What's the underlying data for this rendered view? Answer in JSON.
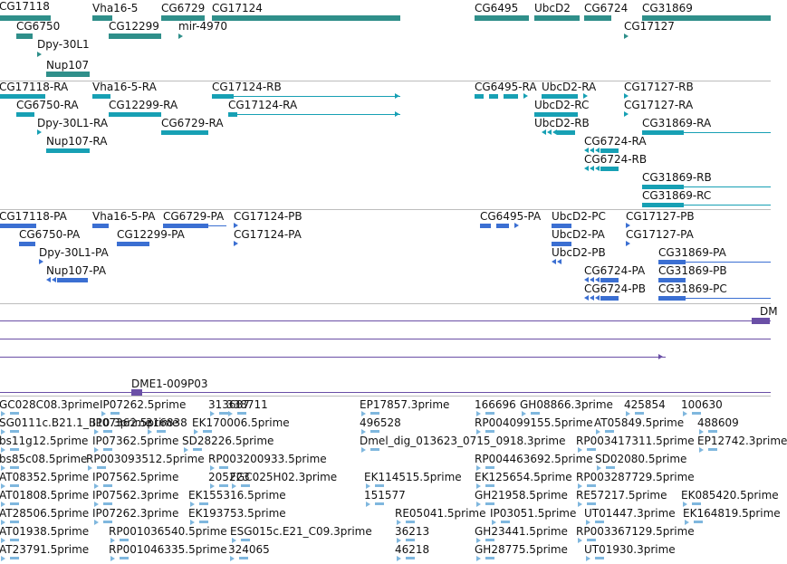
{
  "colors": {
    "gene": "#2f8f8a",
    "transcript": "#17a0b4",
    "protein": "#3b6fd2",
    "contig": "#6a4fa6",
    "est": "#7fb7de",
    "separator": "#bdbdbd"
  },
  "tracks": {
    "genes": {
      "labels": [
        "CG17118",
        "Vha16-5",
        "CG6729",
        "CG17124",
        "CG6495",
        "UbcD2",
        "CG6724",
        "CG31869",
        "CG6750",
        "CG12299",
        "mir-4970",
        "CG17127",
        "Dpy-30L1",
        "Nup107"
      ]
    },
    "transcripts": {
      "labels": [
        "CG17118-RA",
        "Vha16-5-RA",
        "CG17124-RB",
        "CG6495-RA",
        "UbcD2-RA",
        "CG17127-RB",
        "CG6750-RA",
        "CG12299-RA",
        "CG17124-RA",
        "UbcD2-RC",
        "CG17127-RA",
        "Dpy-30L1-RA",
        "CG6729-RA",
        "UbcD2-RB",
        "CG31869-RA",
        "Nup107-RA",
        "CG6724-RA",
        "CG6724-RB",
        "CG31869-RB",
        "CG31869-RC"
      ]
    },
    "proteins": {
      "labels": [
        "CG17118-PA",
        "Vha16-5-PA",
        "CG6729-PA",
        "CG17124-PB",
        "CG6495-PA",
        "UbcD2-PC",
        "CG17127-PB",
        "CG6750-PA",
        "CG12299-PA",
        "CG17124-PA",
        "UbcD2-PA",
        "CG17127-PA",
        "Dpy-30L1-PA",
        "UbcD2-PB",
        "CG31869-PA",
        "Nup107-PA",
        "CG6724-PA",
        "CG31869-PB",
        "CG6724-PB",
        "CG31869-PC"
      ]
    },
    "contigs": {
      "labels": [
        "DM",
        "DME1-009P03"
      ]
    },
    "ests": {
      "labels": [
        "GC028C08.3prime",
        "IP07262.5prime",
        "313687",
        "338711",
        "EP17857.3prime",
        "166696",
        "GH08866.3prime",
        "425854",
        "100630",
        "SG0111c.B21.1_B10.3prime",
        "IP07362.5prime",
        "316838",
        "EK170006.5prime",
        "496528",
        "RP004099155.5prime",
        "AT05849.5prime",
        "488609",
        "bs11g12.5prime",
        "IP07362.5prime",
        "SD28226.5prime",
        "Dmel_dig_013623_0715_0918.3prime",
        "RP003417311.5prime",
        "EP12742.3prime",
        "bs85c08.5prime",
        "RP003093512.5prime",
        "RP003200933.5prime",
        "RP004463692.5prime",
        "SD02080.5prime",
        "AT08352.5prime",
        "IP07562.5prime",
        "205223",
        "FGC025H02.3prime",
        "EK114515.5prime",
        "EK125654.5prime",
        "RP003287729.5prime",
        "AT01808.5prime",
        "IP07562.3prime",
        "EK155316.5prime",
        "151577",
        "GH21958.5prime",
        "RE57217.5prime",
        "EK085420.5prime",
        "AT28506.5prime",
        "IP07262.3prime",
        "EK193753.5prime",
        "RE05041.5prime",
        "IP03051.5prime",
        "UT01447.3prime",
        "EK164819.5prime",
        "AT01938.5prime",
        "RP001036540.5prime",
        "ESG015c.E21_C09.3prime",
        "36213",
        "GH23441.5prime",
        "RP003367129.5prime",
        "AT23791.5prime",
        "RP001046335.5prime",
        "324065",
        "46218",
        "GH28775.5prime",
        "UT01930.3prime"
      ]
    }
  }
}
